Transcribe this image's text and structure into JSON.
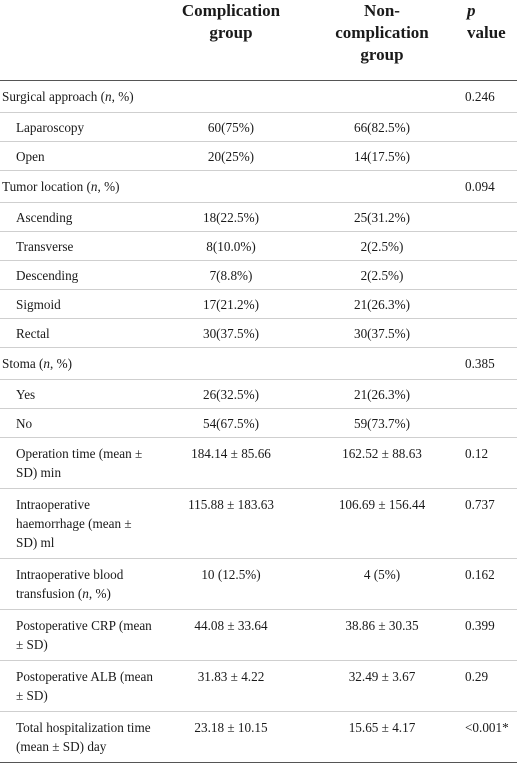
{
  "header": {
    "col1": "",
    "col2_line1": "Complication",
    "col2_line2": "group",
    "col3_line1": "Non-",
    "col3_line2": "complication",
    "col3_line3": "group",
    "col4_line1": "p",
    "col4_line2": "value"
  },
  "rows": [
    {
      "label_pre": "Surgical approach (",
      "label_it": "n",
      "label_post": ", %)",
      "g1": "",
      "g2": "",
      "p": "0.246"
    },
    {
      "label": "Laparoscopy",
      "g1": "60(75%)",
      "g2": "66(82.5%)",
      "p": ""
    },
    {
      "label": "Open",
      "g1": "20(25%)",
      "g2": "14(17.5%)",
      "p": ""
    },
    {
      "label_pre": "Tumor location (",
      "label_it": "n",
      "label_post": ", %)",
      "g1": "",
      "g2": "",
      "p": "0.094"
    },
    {
      "label": "Ascending",
      "g1": "18(22.5%)",
      "g2": "25(31.2%)",
      "p": ""
    },
    {
      "label": "Transverse",
      "g1": "8(10.0%)",
      "g2": "2(2.5%)",
      "p": ""
    },
    {
      "label": "Descending",
      "g1": "7(8.8%)",
      "g2": "2(2.5%)",
      "p": ""
    },
    {
      "label": "Sigmoid",
      "g1": "17(21.2%)",
      "g2": "21(26.3%)",
      "p": ""
    },
    {
      "label": "Rectal",
      "g1": "30(37.5%)",
      "g2": "30(37.5%)",
      "p": ""
    },
    {
      "label_pre": "Stoma (",
      "label_it": "n",
      "label_post": ", %)",
      "g1": "",
      "g2": "",
      "p": "0.385"
    },
    {
      "label": "Yes",
      "g1": "26(32.5%)",
      "g2": "21(26.3%)",
      "p": ""
    },
    {
      "label": "No",
      "g1": "54(67.5%)",
      "g2": "59(73.7%)",
      "p": ""
    },
    {
      "label": "Operation time (mean ± SD) min",
      "g1": "184.14 ± 85.66",
      "g2": "162.52 ± 88.63",
      "p": "0.12"
    },
    {
      "label": "Intraoperative haemorrhage (mean ± SD) ml",
      "g1": "115.88 ± 183.63",
      "g2": "106.69 ± 156.44",
      "p": "0.737"
    },
    {
      "label_pre": "Intraoperative blood transfusion (",
      "label_it": "n",
      "label_post": ", %)",
      "g1": "10 (12.5%)",
      "g2": "4 (5%)",
      "p": "0.162"
    },
    {
      "label": "Postoperative CRP (mean ± SD)",
      "g1": "44.08 ± 33.64",
      "g2": "38.86 ± 30.35",
      "p": "0.399"
    },
    {
      "label": "Postoperative ALB (mean ± SD)",
      "g1": "31.83 ± 4.22",
      "g2": "32.49 ± 3.67",
      "p": "0.29"
    },
    {
      "label": "Total hospitalization time (mean ± SD) day",
      "g1": "23.18 ± 10.15",
      "g2": "15.65 ± 4.17",
      "p": "<0.001*"
    }
  ]
}
